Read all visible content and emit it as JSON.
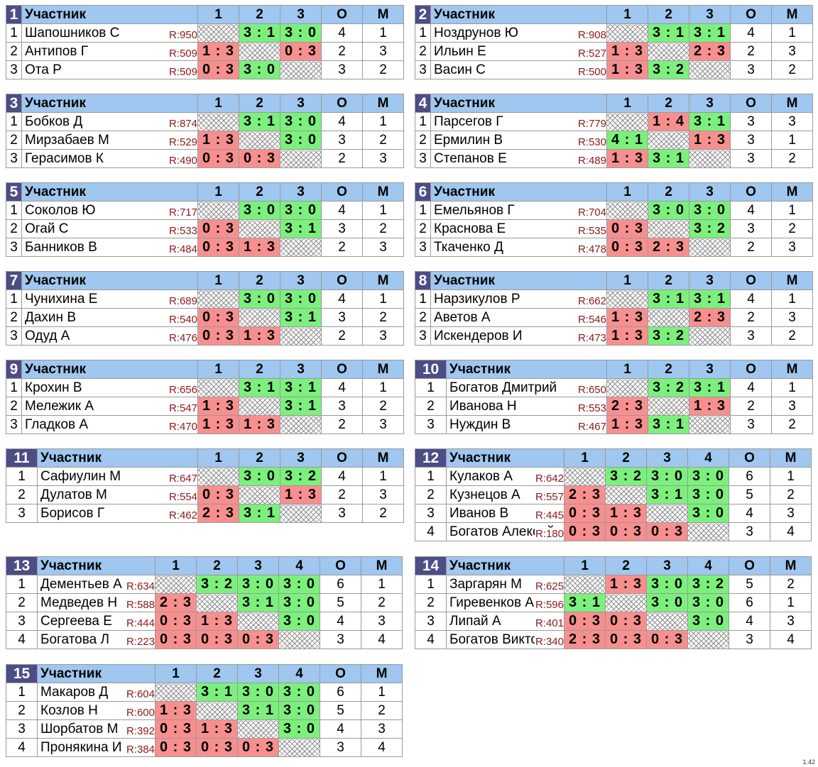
{
  "header": {
    "participant": "Участник",
    "points_col": "О",
    "place_col": "М"
  },
  "version": "1.42",
  "groups": [
    {
      "num": "1",
      "rows": [
        {
          "n": "1",
          "name": "Шапошников С",
          "rating": "R:950",
          "scores": [
            null,
            "3 : 1",
            "3 : 0"
          ],
          "o": "4",
          "m": "1"
        },
        {
          "n": "2",
          "name": "Антипов Г",
          "rating": "R:509",
          "scores": [
            "1 : 3",
            null,
            "0 : 3"
          ],
          "o": "2",
          "m": "3"
        },
        {
          "n": "3",
          "name": "Ота Р",
          "rating": "R:509",
          "scores": [
            "0 : 3",
            "3 : 0",
            null
          ],
          "o": "3",
          "m": "2"
        }
      ]
    },
    {
      "num": "2",
      "rows": [
        {
          "n": "1",
          "name": "Ноздрунов Ю",
          "rating": "R:908",
          "scores": [
            null,
            "3 : 1",
            "3 : 1"
          ],
          "o": "4",
          "m": "1"
        },
        {
          "n": "2",
          "name": "Ильин Е",
          "rating": "R:527",
          "scores": [
            "1 : 3",
            null,
            "2 : 3"
          ],
          "o": "2",
          "m": "3"
        },
        {
          "n": "3",
          "name": "Васин С",
          "rating": "R:500",
          "scores": [
            "1 : 3",
            "3 : 2",
            null
          ],
          "o": "3",
          "m": "2"
        }
      ]
    },
    {
      "num": "3",
      "rows": [
        {
          "n": "1",
          "name": "Бобков Д",
          "rating": "R:874",
          "scores": [
            null,
            "3 : 1",
            "3 : 0"
          ],
          "o": "4",
          "m": "1"
        },
        {
          "n": "2",
          "name": "Мирзабаев М",
          "rating": "R:529",
          "scores": [
            "1 : 3",
            null,
            "3 : 0"
          ],
          "o": "3",
          "m": "2"
        },
        {
          "n": "3",
          "name": "Герасимов К",
          "rating": "R:490",
          "scores": [
            "0 : 3",
            "0 : 3",
            null
          ],
          "o": "2",
          "m": "3"
        }
      ]
    },
    {
      "num": "4",
      "rows": [
        {
          "n": "1",
          "name": "Парсегов Г",
          "rating": "R:779",
          "scores": [
            null,
            "1 : 4",
            "3 : 1"
          ],
          "o": "3",
          "m": "3"
        },
        {
          "n": "2",
          "name": "Ермилин В",
          "rating": "R:530",
          "scores": [
            "4 : 1",
            null,
            "1 : 3"
          ],
          "o": "3",
          "m": "1"
        },
        {
          "n": "3",
          "name": "Степанов Е",
          "rating": "R:489",
          "scores": [
            "1 : 3",
            "3 : 1",
            null
          ],
          "o": "3",
          "m": "2"
        }
      ]
    },
    {
      "num": "5",
      "rows": [
        {
          "n": "1",
          "name": "Соколов Ю",
          "rating": "R:717",
          "scores": [
            null,
            "3 : 0",
            "3 : 0"
          ],
          "o": "4",
          "m": "1"
        },
        {
          "n": "2",
          "name": "Огай С",
          "rating": "R:533",
          "scores": [
            "0 : 3",
            null,
            "3 : 1"
          ],
          "o": "3",
          "m": "2"
        },
        {
          "n": "3",
          "name": "Банников В",
          "rating": "R:484",
          "scores": [
            "0 : 3",
            "1 : 3",
            null
          ],
          "o": "2",
          "m": "3"
        }
      ]
    },
    {
      "num": "6",
      "rows": [
        {
          "n": "1",
          "name": "Емельянов Г",
          "rating": "R:704",
          "scores": [
            null,
            "3 : 0",
            "3 : 0"
          ],
          "o": "4",
          "m": "1"
        },
        {
          "n": "2",
          "name": "Краснова Е",
          "rating": "R:535",
          "scores": [
            "0 : 3",
            null,
            "3 : 2"
          ],
          "o": "3",
          "m": "2"
        },
        {
          "n": "3",
          "name": "Ткаченко Д",
          "rating": "R:478",
          "scores": [
            "0 : 3",
            "2 : 3",
            null
          ],
          "o": "2",
          "m": "3"
        }
      ]
    },
    {
      "num": "7",
      "rows": [
        {
          "n": "1",
          "name": "Чунихина Е",
          "rating": "R:689",
          "scores": [
            null,
            "3 : 0",
            "3 : 0"
          ],
          "o": "4",
          "m": "1"
        },
        {
          "n": "2",
          "name": "Дахин В",
          "rating": "R:540",
          "scores": [
            "0 : 3",
            null,
            "3 : 1"
          ],
          "o": "3",
          "m": "2"
        },
        {
          "n": "3",
          "name": "Одуд А",
          "rating": "R:476",
          "scores": [
            "0 : 3",
            "1 : 3",
            null
          ],
          "o": "2",
          "m": "3"
        }
      ]
    },
    {
      "num": "8",
      "rows": [
        {
          "n": "1",
          "name": "Нарзикулов Р",
          "rating": "R:662",
          "scores": [
            null,
            "3 : 1",
            "3 : 1"
          ],
          "o": "4",
          "m": "1"
        },
        {
          "n": "2",
          "name": "Аветов А",
          "rating": "R:546",
          "scores": [
            "1 : 3",
            null,
            "2 : 3"
          ],
          "o": "2",
          "m": "3"
        },
        {
          "n": "3",
          "name": "Искендеров И",
          "rating": "R:473",
          "scores": [
            "1 : 3",
            "3 : 2",
            null
          ],
          "o": "3",
          "m": "2"
        }
      ]
    },
    {
      "num": "9",
      "rows": [
        {
          "n": "1",
          "name": "Крохин В",
          "rating": "R:656",
          "scores": [
            null,
            "3 : 1",
            "3 : 1"
          ],
          "o": "4",
          "m": "1"
        },
        {
          "n": "2",
          "name": "Мележик А",
          "rating": "R:547",
          "scores": [
            "1 : 3",
            null,
            "3 : 1"
          ],
          "o": "3",
          "m": "2"
        },
        {
          "n": "3",
          "name": "Гладков А",
          "rating": "R:470",
          "scores": [
            "1 : 3",
            "1 : 3",
            null
          ],
          "o": "2",
          "m": "3"
        }
      ]
    },
    {
      "num": "10",
      "rows": [
        {
          "n": "1",
          "name": "Богатов Дмитрий",
          "rating": "R:650",
          "scores": [
            null,
            "3 : 2",
            "3 : 1"
          ],
          "o": "4",
          "m": "1"
        },
        {
          "n": "2",
          "name": "Иванова Н",
          "rating": "R:553",
          "scores": [
            "2 : 3",
            null,
            "1 : 3"
          ],
          "o": "2",
          "m": "3"
        },
        {
          "n": "3",
          "name": "Нуждин В",
          "rating": "R:467",
          "scores": [
            "1 : 3",
            "3 : 1",
            null
          ],
          "o": "3",
          "m": "2"
        }
      ]
    },
    {
      "num": "11",
      "rows": [
        {
          "n": "1",
          "name": "Сафиулин М",
          "rating": "R:647",
          "scores": [
            null,
            "3 : 0",
            "3 : 2"
          ],
          "o": "4",
          "m": "1"
        },
        {
          "n": "2",
          "name": "Дулатов М",
          "rating": "R:554",
          "scores": [
            "0 : 3",
            null,
            "1 : 3"
          ],
          "o": "2",
          "m": "3"
        },
        {
          "n": "3",
          "name": "Борисов Г",
          "rating": "R:462",
          "scores": [
            "2 : 3",
            "3 : 1",
            null
          ],
          "o": "3",
          "m": "2"
        }
      ]
    },
    {
      "num": "12",
      "rows": [
        {
          "n": "1",
          "name": "Кулаков А",
          "rating": "R:642",
          "scores": [
            null,
            "3 : 2",
            "3 : 0",
            "3 : 0"
          ],
          "o": "6",
          "m": "1"
        },
        {
          "n": "2",
          "name": "Кузнецов А",
          "rating": "R:557",
          "scores": [
            "2 : 3",
            null,
            "3 : 1",
            "3 : 0"
          ],
          "o": "5",
          "m": "2"
        },
        {
          "n": "3",
          "name": "Иванов В",
          "rating": "R:445",
          "scores": [
            "0 : 3",
            "1 : 3",
            null,
            "3 : 0"
          ],
          "o": "4",
          "m": "3"
        },
        {
          "n": "4",
          "name": "Богатов Алексей",
          "rating": "R:180",
          "scores": [
            "0 : 3",
            "0 : 3",
            "0 : 3",
            null
          ],
          "o": "3",
          "m": "4"
        }
      ]
    },
    {
      "num": "13",
      "rows": [
        {
          "n": "1",
          "name": "Дементьев А",
          "rating": "R:634",
          "scores": [
            null,
            "3 : 2",
            "3 : 0",
            "3 : 0"
          ],
          "o": "6",
          "m": "1"
        },
        {
          "n": "2",
          "name": "Медведев Н",
          "rating": "R:588",
          "scores": [
            "2 : 3",
            null,
            "3 : 1",
            "3 : 0"
          ],
          "o": "5",
          "m": "2"
        },
        {
          "n": "3",
          "name": "Сергеева Е",
          "rating": "R:444",
          "scores": [
            "0 : 3",
            "1 : 3",
            null,
            "3 : 0"
          ],
          "o": "4",
          "m": "3"
        },
        {
          "n": "4",
          "name": "Богатова Л",
          "rating": "R:223",
          "scores": [
            "0 : 3",
            "0 : 3",
            "0 : 3",
            null
          ],
          "o": "3",
          "m": "4"
        }
      ]
    },
    {
      "num": "14",
      "rows": [
        {
          "n": "1",
          "name": "Заргарян М",
          "rating": "R:625",
          "scores": [
            null,
            "1 : 3",
            "3 : 0",
            "3 : 2"
          ],
          "o": "5",
          "m": "2"
        },
        {
          "n": "2",
          "name": "Гиревенков А",
          "rating": "R:596",
          "scores": [
            "3 : 1",
            null,
            "3 : 0",
            "3 : 0"
          ],
          "o": "6",
          "m": "1"
        },
        {
          "n": "3",
          "name": "Липай А",
          "rating": "R:401",
          "scores": [
            "0 : 3",
            "0 : 3",
            null,
            "3 : 0"
          ],
          "o": "4",
          "m": "3"
        },
        {
          "n": "4",
          "name": "Богатов Виктор",
          "rating": "R:340",
          "scores": [
            "2 : 3",
            "0 : 3",
            "0 : 3",
            null
          ],
          "o": "3",
          "m": "4"
        }
      ]
    },
    {
      "num": "15",
      "rows": [
        {
          "n": "1",
          "name": "Макаров Д",
          "rating": "R:604",
          "scores": [
            null,
            "3 : 1",
            "3 : 0",
            "3 : 0"
          ],
          "o": "6",
          "m": "1"
        },
        {
          "n": "2",
          "name": "Козлов Н",
          "rating": "R:600",
          "scores": [
            "1 : 3",
            null,
            "3 : 1",
            "3 : 0"
          ],
          "o": "5",
          "m": "2"
        },
        {
          "n": "3",
          "name": "Шорбатов М",
          "rating": "R:392",
          "scores": [
            "0 : 3",
            "1 : 3",
            null,
            "3 : 0"
          ],
          "o": "4",
          "m": "3"
        },
        {
          "n": "4",
          "name": "Пронякина И",
          "rating": "R:384",
          "scores": [
            "0 : 3",
            "0 : 3",
            "0 : 3",
            null
          ],
          "o": "3",
          "m": "4"
        }
      ]
    }
  ]
}
